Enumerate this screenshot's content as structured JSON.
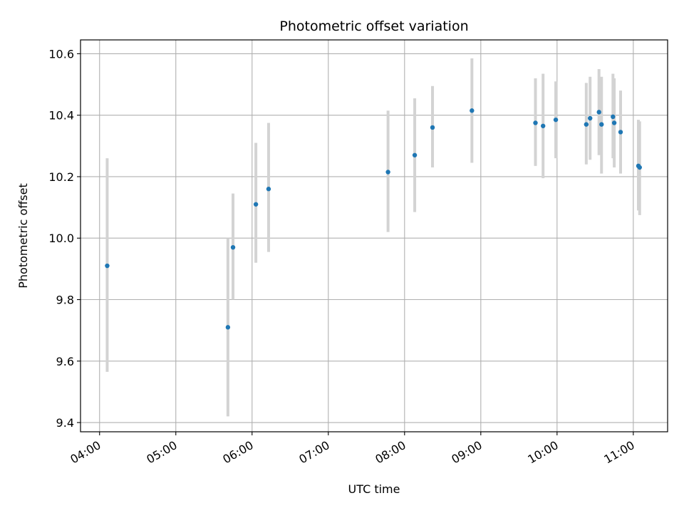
{
  "chart_data": {
    "type": "scatter",
    "title": "Photometric offset variation",
    "xlabel": "UTC time",
    "ylabel": "Photometric offset",
    "x_ticks": [
      "04:00",
      "05:00",
      "06:00",
      "07:00",
      "08:00",
      "09:00",
      "10:00",
      "11:00"
    ],
    "y_ticks": [
      "9.4",
      "9.6",
      "9.8",
      "10.0",
      "10.2",
      "10.4",
      "10.6"
    ],
    "xlim": [
      "03:45",
      "11:27"
    ],
    "ylim": [
      9.37,
      10.645
    ],
    "grid": true,
    "colors": {
      "points": "#1f77b4",
      "error_bars": "#d3d3d3",
      "grid": "#b0b0b0"
    },
    "points": [
      {
        "x": "04:06",
        "y": 9.91,
        "ylow": 9.565,
        "yhigh": 10.26
      },
      {
        "x": "05:41",
        "y": 9.71,
        "ylow": 9.42,
        "yhigh": 10.0
      },
      {
        "x": "05:45",
        "y": 9.97,
        "ylow": 9.8,
        "yhigh": 10.145
      },
      {
        "x": "06:03",
        "y": 10.11,
        "ylow": 9.92,
        "yhigh": 10.31
      },
      {
        "x": "06:13",
        "y": 10.16,
        "ylow": 9.955,
        "yhigh": 10.375
      },
      {
        "x": "07:47",
        "y": 10.215,
        "ylow": 10.02,
        "yhigh": 10.415
      },
      {
        "x": "08:08",
        "y": 10.27,
        "ylow": 10.085,
        "yhigh": 10.455
      },
      {
        "x": "08:22",
        "y": 10.36,
        "ylow": 10.23,
        "yhigh": 10.495
      },
      {
        "x": "08:53",
        "y": 10.415,
        "ylow": 10.245,
        "yhigh": 10.585
      },
      {
        "x": "09:43",
        "y": 10.375,
        "ylow": 10.235,
        "yhigh": 10.52
      },
      {
        "x": "09:49",
        "y": 10.365,
        "ylow": 10.195,
        "yhigh": 10.535
      },
      {
        "x": "09:59",
        "y": 10.385,
        "ylow": 10.26,
        "yhigh": 10.51
      },
      {
        "x": "10:23",
        "y": 10.37,
        "ylow": 10.24,
        "yhigh": 10.505
      },
      {
        "x": "10:26",
        "y": 10.39,
        "ylow": 10.255,
        "yhigh": 10.525
      },
      {
        "x": "10:33",
        "y": 10.41,
        "ylow": 10.27,
        "yhigh": 10.55
      },
      {
        "x": "10:35",
        "y": 10.37,
        "ylow": 10.21,
        "yhigh": 10.525
      },
      {
        "x": "10:44",
        "y": 10.395,
        "ylow": 10.26,
        "yhigh": 10.535
      },
      {
        "x": "10:45",
        "y": 10.375,
        "ylow": 10.23,
        "yhigh": 10.52
      },
      {
        "x": "10:50",
        "y": 10.345,
        "ylow": 10.21,
        "yhigh": 10.48
      },
      {
        "x": "11:04",
        "y": 10.235,
        "ylow": 10.09,
        "yhigh": 10.385
      },
      {
        "x": "11:05",
        "y": 10.23,
        "ylow": 10.075,
        "yhigh": 10.38
      }
    ]
  }
}
